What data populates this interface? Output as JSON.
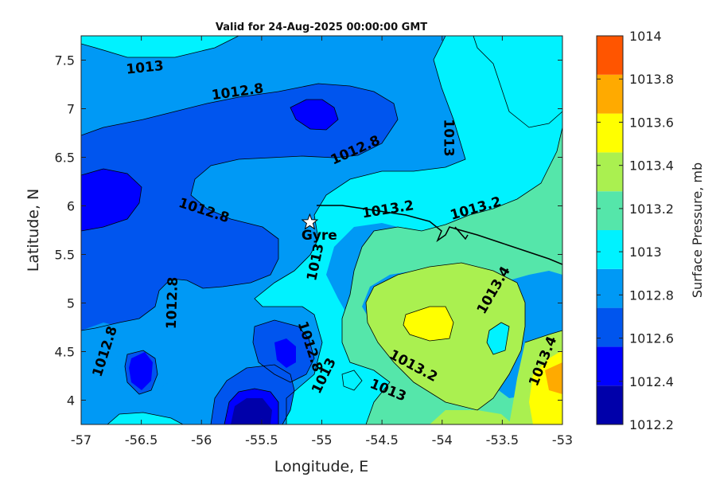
{
  "chart_data": {
    "type": "contour",
    "title": "Valid for 24-Aug-2025 00:00:00 GMT",
    "xlabel": "Longitude, E",
    "ylabel": "Latitude, N",
    "colorbar_label": "Surface Pressure, mb",
    "xlim": [
      -57,
      -53
    ],
    "ylim": [
      3.75,
      7.75
    ],
    "x_ticks": [
      -57,
      -56.5,
      -56,
      -55.5,
      -55,
      -54.5,
      -54,
      -53.5,
      -53
    ],
    "x_tick_labels": [
      "-57",
      "-56.5",
      "-56",
      "-55.5",
      "-55",
      "-54.5",
      "-54",
      "-53.5",
      "-53"
    ],
    "y_ticks": [
      4,
      4.5,
      5,
      5.5,
      6,
      6.5,
      7,
      7.5
    ],
    "y_tick_labels": [
      "4",
      "4.5",
      "5",
      "5.5",
      "6",
      "6.5",
      "7",
      "7.5"
    ],
    "colorbar_ticks": [
      "1014",
      "1013.8",
      "1013.6",
      "1013.4",
      "1013.2",
      "1013",
      "1012.8",
      "1012.6",
      "1012.4",
      "1012.2"
    ],
    "levels": [
      1012.2,
      1012.4,
      1012.6,
      1012.8,
      1013.0,
      1013.2,
      1013.4,
      1013.6,
      1013.8,
      1014.0
    ],
    "level_colors": [
      "#0000aa",
      "#0000ff",
      "#0055ee",
      "#0099f5",
      "#00f2ff",
      "#55e6aa",
      "#aaf050",
      "#ffff00",
      "#ffaa00",
      "#ff5500"
    ],
    "marker": {
      "name": "Gyre",
      "lon": -55.1,
      "lat": 5.83
    },
    "contour_labels": [
      {
        "text": "1013",
        "lon": -56.47,
        "lat": 7.42,
        "rot": -6
      },
      {
        "text": "1012.8",
        "lon": -55.7,
        "lat": 7.17,
        "rot": -8
      },
      {
        "text": "1012.8",
        "lon": -54.72,
        "lat": 6.57,
        "rot": -24
      },
      {
        "text": "1013",
        "lon": -53.95,
        "lat": 6.7,
        "rot": 90
      },
      {
        "text": "1012.8",
        "lon": -55.98,
        "lat": 5.95,
        "rot": 18
      },
      {
        "text": "1013.2",
        "lon": -54.45,
        "lat": 5.96,
        "rot": -9
      },
      {
        "text": "1013.2",
        "lon": -53.72,
        "lat": 5.97,
        "rot": -16
      },
      {
        "text": "1013",
        "lon": -55.05,
        "lat": 5.42,
        "rot": -78
      },
      {
        "text": "1012.8",
        "lon": -56.24,
        "lat": 5.0,
        "rot": -88
      },
      {
        "text": "1013.4",
        "lon": -53.57,
        "lat": 5.13,
        "rot": -60
      },
      {
        "text": "1012.8",
        "lon": -56.8,
        "lat": 4.5,
        "rot": -72
      },
      {
        "text": "1012.8",
        "lon": -55.1,
        "lat": 4.55,
        "rot": 72
      },
      {
        "text": "1013",
        "lon": -54.98,
        "lat": 4.25,
        "rot": -64
      },
      {
        "text": "1013.2",
        "lon": -54.24,
        "lat": 4.35,
        "rot": 28
      },
      {
        "text": "1013",
        "lon": -54.45,
        "lat": 4.1,
        "rot": 22
      },
      {
        "text": "1013.4",
        "lon": -53.16,
        "lat": 4.4,
        "rot": -68
      }
    ],
    "grid": false,
    "legend": "colorbar-right"
  }
}
